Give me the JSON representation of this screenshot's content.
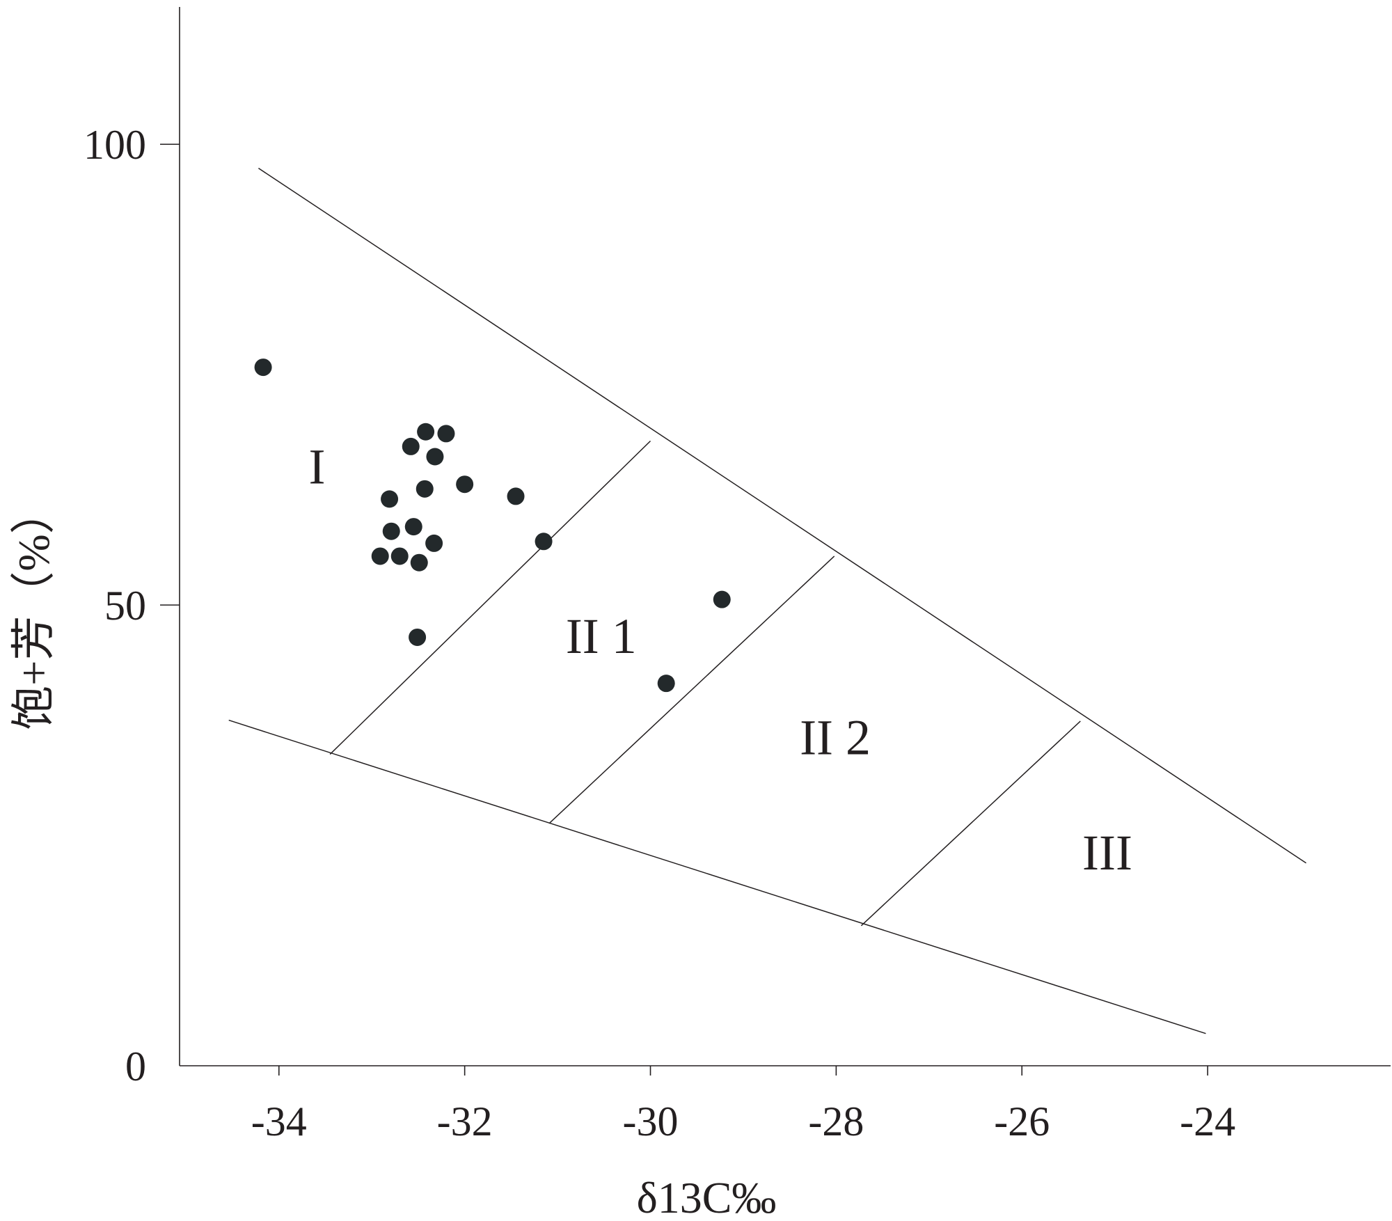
{
  "chart_data": {
    "type": "scatter",
    "xlabel": "δ13C‰",
    "ylabel": "饱+芳（%）",
    "xlim": [
      -35.07,
      -22.03
    ],
    "ylim": [
      0,
      114.9
    ],
    "x_ticks": [
      -34,
      -32,
      -30,
      -28,
      -26,
      -24
    ],
    "x_tick_labels": [
      "-34",
      "-32",
      "-30",
      "-28",
      "-26",
      "-24"
    ],
    "y_ticks": [
      0,
      50,
      100
    ],
    "y_tick_labels": [
      "0",
      "50",
      "100"
    ],
    "grid": false,
    "legend": "none",
    "series": [
      {
        "marker": "filled-circle",
        "color": "#23292b",
        "points": [
          {
            "x": -34.17,
            "y": 75.8
          },
          {
            "x": -32.42,
            "y": 68.8
          },
          {
            "x": -32.2,
            "y": 68.6
          },
          {
            "x": -32.58,
            "y": 67.2
          },
          {
            "x": -32.32,
            "y": 66.1
          },
          {
            "x": -32.0,
            "y": 63.1
          },
          {
            "x": -32.43,
            "y": 62.6
          },
          {
            "x": -31.45,
            "y": 61.8
          },
          {
            "x": -32.81,
            "y": 61.5
          },
          {
            "x": -32.55,
            "y": 58.5
          },
          {
            "x": -32.79,
            "y": 58.0
          },
          {
            "x": -32.33,
            "y": 56.7
          },
          {
            "x": -31.15,
            "y": 56.9
          },
          {
            "x": -32.91,
            "y": 55.3
          },
          {
            "x": -32.7,
            "y": 55.3
          },
          {
            "x": -32.49,
            "y": 54.6
          },
          {
            "x": -29.23,
            "y": 50.6
          },
          {
            "x": -32.51,
            "y": 46.5
          },
          {
            "x": -29.83,
            "y": 41.5
          }
        ]
      }
    ],
    "boundaries": [
      {
        "from": {
          "x": -34.22,
          "y": 97.4
        },
        "to": {
          "x": -22.94,
          "y": 22.0
        }
      },
      {
        "from": {
          "x": -34.54,
          "y": 37.5
        },
        "to": {
          "x": -24.02,
          "y": 3.5
        }
      },
      {
        "from": {
          "x": -33.45,
          "y": 33.8
        },
        "to": {
          "x": -30.0,
          "y": 67.8
        }
      },
      {
        "from": {
          "x": -31.09,
          "y": 26.3
        },
        "to": {
          "x": -28.02,
          "y": 55.3
        }
      },
      {
        "from": {
          "x": -27.73,
          "y": 15.2
        },
        "to": {
          "x": -25.37,
          "y": 37.4
        }
      }
    ],
    "regions": [
      {
        "label": "I",
        "x": -33.59,
        "y": 63.2
      },
      {
        "label": "II 1",
        "x": -30.53,
        "y": 44.8
      },
      {
        "label": "II 2",
        "x": -28.01,
        "y": 33.8
      },
      {
        "label": "III",
        "x": -25.08,
        "y": 21.3
      }
    ]
  }
}
